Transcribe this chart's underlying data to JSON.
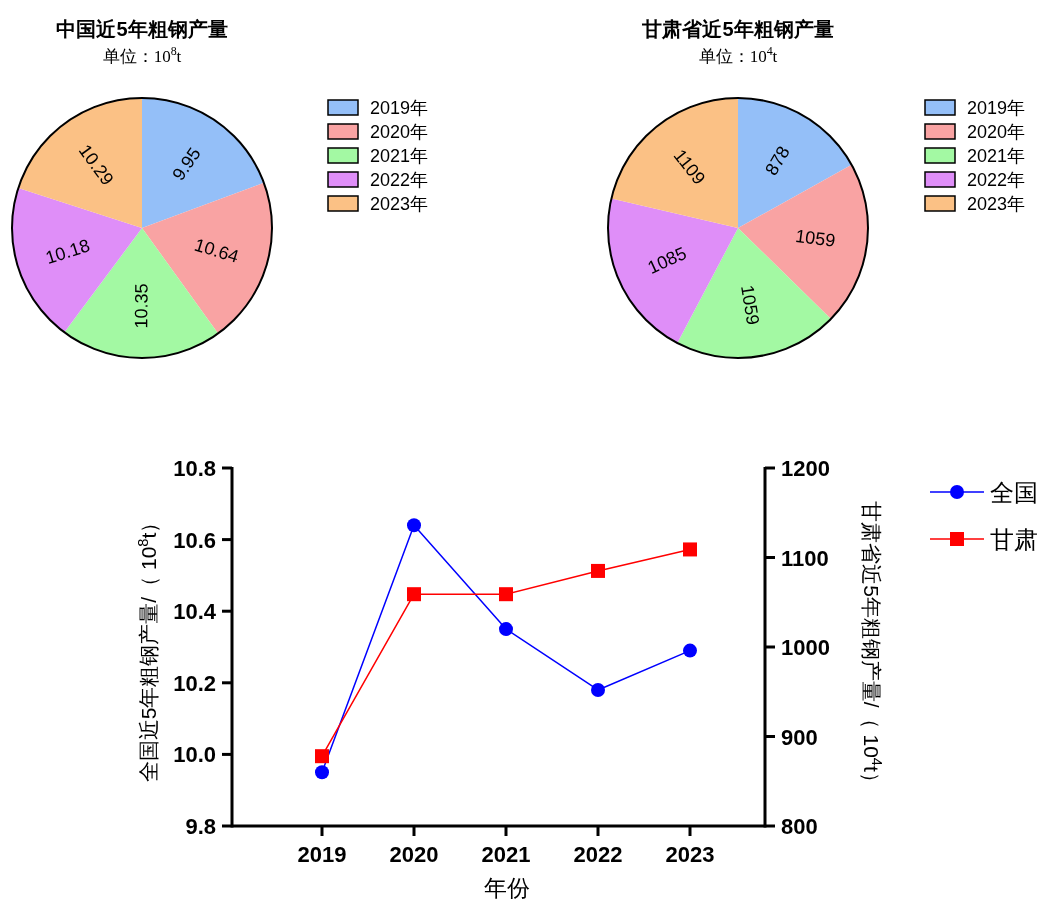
{
  "chart_data": [
    {
      "type": "pie",
      "title": "中国近5年粗钢产量",
      "subtitle": "单位：10$^{8}$t",
      "categories": [
        "2019年",
        "2020年",
        "2021年",
        "2022年",
        "2023年"
      ],
      "values": [
        9.95,
        10.64,
        10.35,
        10.18,
        10.29
      ],
      "colors": [
        "#94bff8",
        "#f9a3a3",
        "#a3f9a3",
        "#df8ef8",
        "#fbc185"
      ],
      "data_labels": true,
      "legend": "right"
    },
    {
      "type": "pie",
      "title": "甘肃省近5年粗钢产量",
      "subtitle": "单位：10$^{4}$t",
      "categories": [
        "2019年",
        "2020年",
        "2021年",
        "2022年",
        "2023年"
      ],
      "values": [
        878,
        1059,
        1059,
        1085,
        1109
      ],
      "colors": [
        "#94bff8",
        "#f9a3a3",
        "#a3f9a3",
        "#df8ef8",
        "#fbc185"
      ],
      "data_labels": true,
      "legend": "right"
    },
    {
      "type": "line",
      "xlabel": "年份",
      "ylabel": "全国近5年粗钢产量/（ 10$^{8}$t）",
      "y2label": "甘肃省近5年粗钢产量/（ 10$^{4}$t）",
      "categories": [
        "2019",
        "2020",
        "2021",
        "2022",
        "2023"
      ],
      "series": [
        {
          "name": "全国",
          "color": "#0000ff",
          "marker": "circle",
          "values": [
            9.95,
            10.64,
            10.35,
            10.18,
            10.29
          ]
        },
        {
          "name": "甘肃",
          "color": "#ff0000",
          "marker": "square",
          "axis": "y2",
          "values": [
            878,
            1059,
            1059,
            1085,
            1109
          ]
        }
      ],
      "ylim": [
        9.8,
        10.8
      ],
      "yticks": [
        9.8,
        {
          "value": 10.0,
          "label": "10.0"
        },
        10.2,
        10.4,
        10.6,
        10.8
      ],
      "y2lim": [
        800,
        1200
      ],
      "y2ticks": [
        800,
        900,
        1000,
        1100,
        1200
      ],
      "grid": false,
      "legend": "top right"
    }
  ]
}
